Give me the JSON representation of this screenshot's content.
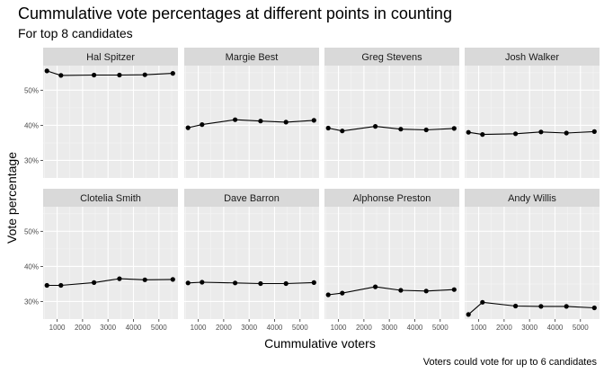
{
  "chart_data": {
    "type": "line",
    "title": "Cummulative vote percentages at different points in counting",
    "subtitle": "For top 8 candidates",
    "xlabel": "Cummulative voters",
    "ylabel": "Vote percentage",
    "caption": "Voters could vote for up to 6 candidates",
    "x_ticks": [
      1000,
      2000,
      3000,
      4000,
      5000
    ],
    "y_ticks": [
      30,
      40,
      50
    ],
    "y_tick_labels": [
      "30%",
      "40%",
      "50%"
    ],
    "xlim": [
      450,
      5750
    ],
    "ylim": [
      25,
      57
    ],
    "grid": true,
    "x": [
      600,
      1150,
      2450,
      3450,
      4450,
      5550
    ],
    "series": [
      {
        "name": "Hal Spitzer",
        "values": [
          55.5,
          54.2,
          54.3,
          54.3,
          54.4,
          54.8
        ]
      },
      {
        "name": "Margie Best",
        "values": [
          39.3,
          40.2,
          41.6,
          41.2,
          40.9,
          41.4
        ]
      },
      {
        "name": "Greg Stevens",
        "values": [
          39.2,
          38.4,
          39.7,
          38.9,
          38.7,
          39.1
        ]
      },
      {
        "name": "Josh Walker",
        "values": [
          38.0,
          37.4,
          37.6,
          38.1,
          37.8,
          38.2
        ]
      },
      {
        "name": "Clotelia Smith",
        "values": [
          34.6,
          34.6,
          35.4,
          36.5,
          36.2,
          36.3
        ]
      },
      {
        "name": "Dave Barron",
        "values": [
          35.3,
          35.5,
          35.3,
          35.1,
          35.1,
          35.4
        ]
      },
      {
        "name": "Alphonse Preston",
        "values": [
          31.9,
          32.4,
          34.2,
          33.2,
          33.0,
          33.4
        ]
      },
      {
        "name": "Andy Willis",
        "values": [
          26.3,
          29.8,
          28.7,
          28.6,
          28.6,
          28.2
        ]
      }
    ]
  }
}
